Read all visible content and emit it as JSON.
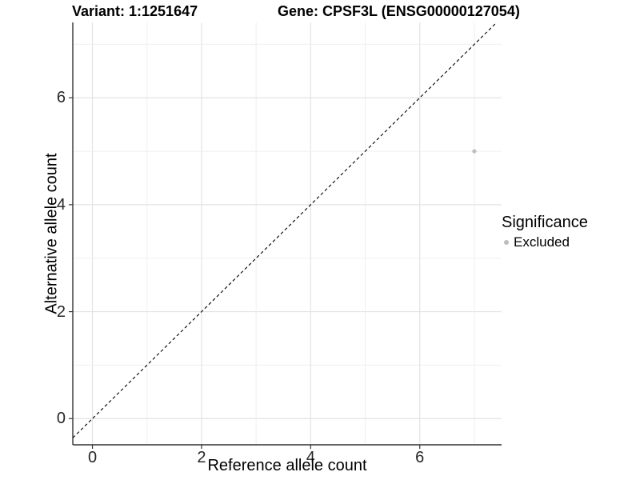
{
  "chart_data": {
    "type": "scatter",
    "titles": {
      "left": "Variant: 1:1251647",
      "right": "Gene: CPSF3L (ENSG00000127054)"
    },
    "xlabel": "Reference allele count",
    "ylabel": "Alternative allele count",
    "xlim": [
      -0.36,
      7.5
    ],
    "ylim": [
      -0.49,
      7.41
    ],
    "xticks": [
      0,
      2,
      4,
      6
    ],
    "yticks": [
      0,
      2,
      4,
      6
    ],
    "grid_lines": [
      0,
      1,
      2,
      3,
      4,
      5,
      6,
      7
    ],
    "grid": true,
    "points": [
      {
        "x": 7,
        "y": 5,
        "significance": "Excluded"
      }
    ],
    "identity_line": {
      "equation": "y = x",
      "style": "dashed",
      "color": "#000000"
    },
    "legend": {
      "title": "Significance",
      "position": "right",
      "entries": [
        {
          "label": "Excluded",
          "color": "#bdbdbd"
        }
      ]
    },
    "colors": {
      "point": "#bdbdbd",
      "grid_major": "#e3e3e3",
      "grid_minor": "#efefef",
      "axis": "#333333",
      "tick_text": "#262626"
    }
  }
}
